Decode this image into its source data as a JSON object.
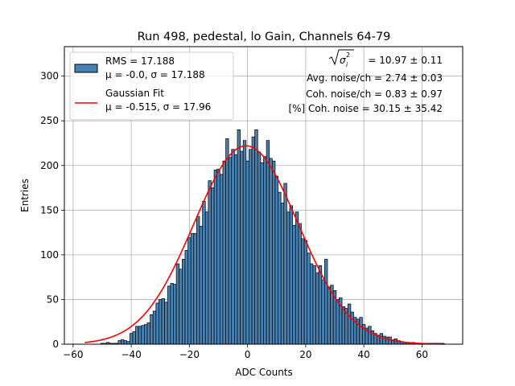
{
  "chart_data": {
    "type": "bar",
    "title": "Run 498, pedestal, lo Gain, Channels 64-79",
    "xlabel": "ADC Counts",
    "ylabel": "Entries",
    "xlim": [
      -63,
      74
    ],
    "ylim": [
      0,
      333
    ],
    "xticks": [
      -60,
      -40,
      -20,
      0,
      20,
      40,
      60
    ],
    "xtick_labels": [
      "−60",
      "−40",
      "−20",
      "0",
      "20",
      "40",
      "60"
    ],
    "yticks": [
      0,
      50,
      100,
      150,
      200,
      250,
      300
    ],
    "ytick_labels": [
      "0",
      "50",
      "100",
      "150",
      "200",
      "250",
      "300"
    ],
    "grid": true,
    "legend_position": "top-left",
    "bar_color": "#4682b4",
    "bar_edge_color": "#000000",
    "fit_color": "#ff0000",
    "histogram": {
      "name_line1": "RMS = 17.188",
      "name_line2": "μ = -0.0, σ = 17.188",
      "bin_width": 1,
      "x": [
        -50,
        -49,
        -48,
        -47,
        -46,
        -45,
        -44,
        -43,
        -42,
        -41,
        -40,
        -39,
        -38,
        -37,
        -36,
        -35,
        -34,
        -33,
        -32,
        -31,
        -30,
        -29,
        -28,
        -27,
        -26,
        -25,
        -24,
        -23,
        -22,
        -21,
        -20,
        -19,
        -18,
        -17,
        -16,
        -15,
        -14,
        -13,
        -12,
        -11,
        -10,
        -9,
        -8,
        -7,
        -6,
        -5,
        -4,
        -3,
        -2,
        -1,
        0,
        1,
        2,
        3,
        4,
        5,
        6,
        7,
        8,
        9,
        10,
        11,
        12,
        13,
        14,
        15,
        16,
        17,
        18,
        19,
        20,
        21,
        22,
        23,
        24,
        25,
        26,
        27,
        28,
        29,
        30,
        31,
        32,
        33,
        34,
        35,
        36,
        37,
        38,
        39,
        40,
        41,
        42,
        43,
        44,
        45,
        46,
        47,
        48,
        49,
        50,
        51,
        52,
        53,
        54,
        55,
        56,
        57,
        58,
        59,
        60,
        61,
        62,
        63,
        64,
        65,
        66,
        67
      ],
      "values": [
        1,
        1,
        2,
        1,
        1,
        1,
        4,
        5,
        4,
        3,
        12,
        14,
        20,
        20,
        21,
        22,
        24,
        33,
        37,
        46,
        50,
        51,
        47,
        65,
        68,
        67,
        90,
        84,
        95,
        105,
        119,
        124,
        124,
        143,
        132,
        160,
        148,
        183,
        175,
        195,
        196,
        190,
        205,
        230,
        209,
        218,
        212,
        240,
        216,
        228,
        205,
        218,
        232,
        240,
        215,
        203,
        210,
        228,
        208,
        205,
        188,
        170,
        158,
        180,
        148,
        155,
        133,
        148,
        135,
        118,
        116,
        102,
        90,
        88,
        80,
        88,
        72,
        95,
        64,
        66,
        60,
        50,
        52,
        42,
        40,
        45,
        36,
        30,
        28,
        30,
        22,
        18,
        20,
        15,
        12,
        10,
        12,
        9,
        8,
        8,
        5,
        6,
        4,
        3,
        2,
        2,
        1,
        2,
        1,
        1,
        1,
        1,
        1,
        1,
        1,
        1,
        1,
        1
      ]
    },
    "gaussian_fit": {
      "name_line1": "Gaussian Fit",
      "name_line2": "μ = -0.515, σ = 17.96",
      "mu": -0.515,
      "sigma": 17.96,
      "amplitude": 222,
      "x_range": [
        -56,
        68
      ]
    },
    "annotations": [
      {
        "id": "sigma",
        "prefix": "= 10.97 ± 0.11"
      },
      {
        "id": "avg",
        "text": "Avg. noise/ch = 2.74 ± 0.03"
      },
      {
        "id": "coh",
        "text": "Coh. noise/ch = 0.83 ± 0.97"
      },
      {
        "id": "cohpct",
        "text": "[%] Coh. noise = 30.15 ± 35.42"
      }
    ]
  }
}
